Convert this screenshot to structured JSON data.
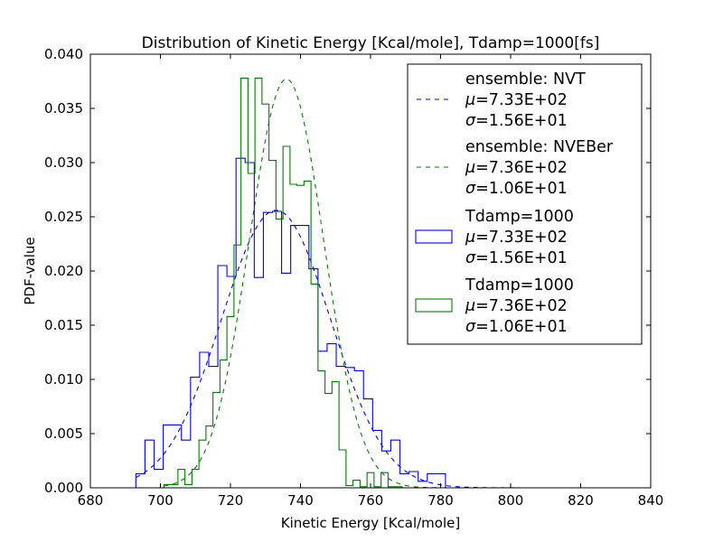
{
  "chart_data": {
    "type": "histogram",
    "title": "Distribution of Kinetic Energy [Kcal/mole], Tdamp=1000[fs]",
    "xlabel": "Kinetic Energy [Kcal/mole]",
    "ylabel": "PDF-value",
    "xlim": [
      680,
      840
    ],
    "ylim": [
      0,
      0.04
    ],
    "xticks": [
      680,
      700,
      720,
      740,
      760,
      780,
      800,
      820,
      840
    ],
    "xtick_labels": [
      "680",
      "700",
      "720",
      "740",
      "760",
      "780",
      "800",
      "820",
      "840"
    ],
    "yticks": [
      0,
      0.005,
      0.01,
      0.015,
      0.02,
      0.025,
      0.03,
      0.035,
      0.04
    ],
    "ytick_labels": [
      "0.000",
      "0.005",
      "0.010",
      "0.015",
      "0.020",
      "0.025",
      "0.030",
      "0.035",
      "0.040"
    ],
    "grid": false,
    "legend_position": "top-right",
    "fits": [
      {
        "ensemble_label": "ensemble: NVT",
        "mu_label": "=7.33E+02",
        "sigma_label": "=1.56E+01",
        "mu": 733,
        "sigma": 15.6,
        "amplitude": 0.0256,
        "x_range": [
          693,
          822
        ],
        "color": "#0000ff",
        "style": "dashed"
      },
      {
        "ensemble_label": "ensemble: NVEBer",
        "mu_label": "=7.36E+02",
        "sigma_label": "=1.06E+01",
        "mu": 736,
        "sigma": 10.6,
        "amplitude": 0.0377,
        "x_range": [
          701,
          780
        ],
        "color": "#008000",
        "style": "dashed"
      }
    ],
    "series": [
      {
        "name": "Tdamp=1000",
        "mu_label": "=7.33E+02",
        "sigma_label": "=1.56E+01",
        "color": "#0000ff",
        "bin_edges": [
          693,
          695.6,
          698.2,
          700.8,
          703.4,
          706,
          708.6,
          711.2,
          713.8,
          716.4,
          719,
          721.6,
          724.2,
          726.8,
          729.4,
          732,
          734.6,
          737.2,
          739.8,
          742.4,
          745,
          747.6,
          750.2,
          752.8,
          755.4,
          758,
          760.6,
          763.2,
          765.8,
          768.4,
          771,
          773.6,
          776.2,
          778.8,
          781.4
        ],
        "values": [
          0.0013,
          0.0044,
          0.0017,
          0.0058,
          0.0058,
          0.0044,
          0.0102,
          0.0125,
          0.0112,
          0.0205,
          0.0195,
          0.0304,
          0.03,
          0.0194,
          0.0254,
          0.0255,
          0.0198,
          0.0242,
          0.0242,
          0.0202,
          0.0126,
          0.0133,
          0.0112,
          0.0111,
          0.0108,
          0.0082,
          0.0053,
          0.0034,
          0.0044,
          0.0013,
          0.0015,
          0.0006,
          0.0013,
          0.0013
        ]
      },
      {
        "name": "Tdamp=1000",
        "mu_label": "=7.36E+02",
        "sigma_label": "=1.06E+01",
        "color": "#008000",
        "bin_edges": [
          701,
          703,
          705,
          707,
          709,
          711,
          713,
          715,
          717,
          719,
          721,
          723,
          725,
          727,
          729,
          731,
          733,
          735,
          737,
          739,
          741,
          743,
          745,
          747,
          749,
          751,
          753,
          755,
          757,
          759,
          761,
          763,
          765,
          767,
          769
        ],
        "values": [
          0.0003,
          0.0003,
          0.0017,
          0.0003,
          0.0017,
          0.0044,
          0.0057,
          0.0088,
          0.0118,
          0.0158,
          0.0224,
          0.0378,
          0.029,
          0.0378,
          0.0354,
          0.0302,
          0.0248,
          0.0315,
          0.028,
          0.0279,
          0.0283,
          0.0188,
          0.0108,
          0.0087,
          0.0098,
          0.0035,
          0.0002,
          0.0007,
          0.0001,
          0.0014,
          0.0001,
          0.0014,
          0.0001,
          0.0001
        ]
      }
    ]
  }
}
